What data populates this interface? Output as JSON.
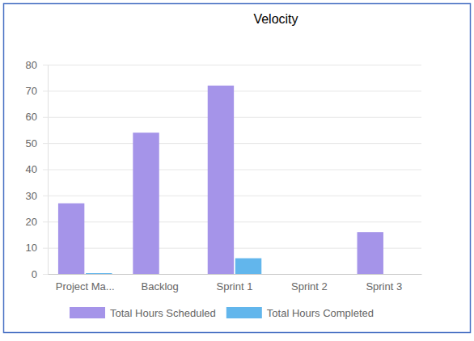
{
  "chart_data": {
    "type": "bar",
    "title": "Velocity",
    "categories": [
      "Project Ma...",
      "Backlog",
      "Sprint 1",
      "Sprint 2",
      "Sprint 3"
    ],
    "series": [
      {
        "name": "Total Hours Scheduled",
        "color": "#a594e9",
        "values": [
          27,
          54,
          72,
          0,
          16
        ]
      },
      {
        "name": "Total Hours Completed",
        "color": "#62b6ec",
        "values": [
          0.3,
          0,
          6,
          0,
          0
        ]
      }
    ],
    "ylim": [
      0,
      80
    ],
    "yticks": [
      0,
      10,
      20,
      30,
      40,
      50,
      60,
      70,
      80
    ],
    "grid": true,
    "legend": "bottom"
  }
}
